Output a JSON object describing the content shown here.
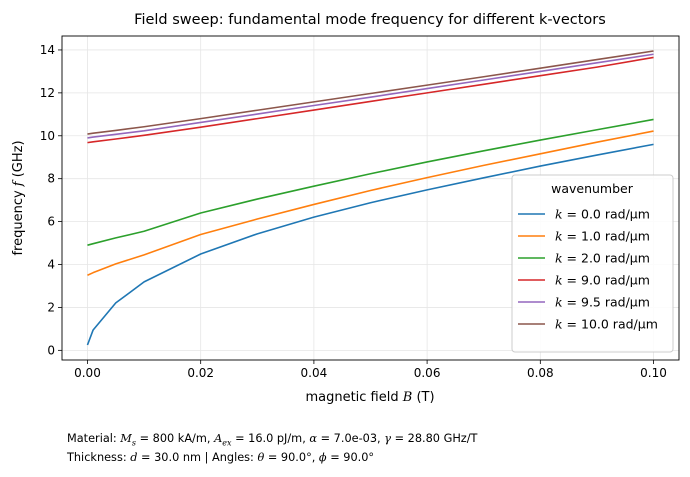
{
  "chart_data": {
    "type": "line",
    "title": "Field sweep: fundamental mode frequency for different k-vectors",
    "xlabel": "magnetic field B (T)",
    "ylabel": "frequency f (GHz)",
    "xlim": [
      -0.0045,
      0.1045
    ],
    "ylim": [
      -0.45,
      14.65
    ],
    "grid": true,
    "x_ticks": [
      0.0,
      0.02,
      0.04,
      0.06,
      0.08,
      0.1
    ],
    "x_tick_labels": [
      "0.00",
      "0.02",
      "0.04",
      "0.06",
      "0.08",
      "0.10"
    ],
    "y_ticks": [
      0,
      2,
      4,
      6,
      8,
      10,
      12,
      14
    ],
    "y_tick_labels": [
      "0",
      "2",
      "4",
      "6",
      "8",
      "10",
      "12",
      "14"
    ],
    "legend": {
      "title": "wavenumber",
      "placement": "center-right"
    },
    "x": [
      0.0,
      0.001,
      0.005,
      0.01,
      0.02,
      0.03,
      0.04,
      0.05,
      0.06,
      0.07,
      0.08,
      0.09,
      0.1
    ],
    "series": [
      {
        "name": "k = 0.0 rad/µm",
        "label_k": "k",
        "label_rest": " = 0.0 rad/µm",
        "color": "#1f77b4",
        "values": [
          0.25,
          0.95,
          2.21,
          3.19,
          4.49,
          5.43,
          6.21,
          6.88,
          7.48,
          8.04,
          8.59,
          9.1,
          9.6
        ]
      },
      {
        "name": "k = 1.0 rad/µm",
        "label_k": "k",
        "label_rest": " = 1.0 rad/µm",
        "color": "#ff7f0e",
        "values": [
          3.5,
          3.62,
          4.03,
          4.45,
          5.4,
          6.12,
          6.8,
          7.45,
          8.05,
          8.62,
          9.16,
          9.7,
          10.22
        ]
      },
      {
        "name": "k = 2.0 rad/µm",
        "label_k": "k",
        "label_rest": " = 2.0 rad/µm",
        "color": "#2ca02c",
        "values": [
          4.9,
          4.97,
          5.24,
          5.55,
          6.4,
          7.05,
          7.65,
          8.23,
          8.78,
          9.3,
          9.8,
          10.28,
          10.76
        ]
      },
      {
        "name": "k = 9.0 rad/µm",
        "label_k": "k",
        "label_rest": " = 9.0 rad/µm",
        "color": "#d62728",
        "values": [
          9.68,
          9.72,
          9.85,
          10.02,
          10.4,
          10.8,
          11.2,
          11.6,
          12.0,
          12.4,
          12.8,
          13.2,
          13.65
        ]
      },
      {
        "name": "k = 9.5 rad/µm",
        "label_k": "k",
        "label_rest": " = 9.5 rad/µm",
        "color": "#9467bd",
        "values": [
          9.9,
          9.94,
          10.07,
          10.23,
          10.62,
          11.01,
          11.41,
          11.8,
          12.2,
          12.6,
          13.0,
          13.4,
          13.8
        ]
      },
      {
        "name": "k = 10.0 rad/µm",
        "label_k": "k",
        "label_rest": " = 10.0 rad/µm",
        "color": "#8c564b",
        "values": [
          10.08,
          10.12,
          10.25,
          10.42,
          10.8,
          11.19,
          11.58,
          11.97,
          12.36,
          12.75,
          13.15,
          13.55,
          13.95
        ]
      }
    ]
  },
  "caption": {
    "line1_prefix": "Material: ",
    "Ms_symbol": "M",
    "Ms_sub": "s",
    "Ms_value": " = 800 kA/m, ",
    "Aex_symbol": "A",
    "Aex_sub": "ex",
    "Aex_value": " = 16.0 pJ/m, ",
    "alpha_symbol": "α",
    "alpha_value": " = 7.0e-03, ",
    "gamma_symbol": "γ",
    "gamma_value": " = 28.80 GHz/T",
    "line2_prefix": "Thickness: ",
    "d_symbol": "d",
    "d_value": " = 30.0 nm | Angles: ",
    "theta_symbol": "θ",
    "theta_value": " = 90.0°, ",
    "phi_symbol": "ϕ",
    "phi_value": " = 90.0°"
  }
}
